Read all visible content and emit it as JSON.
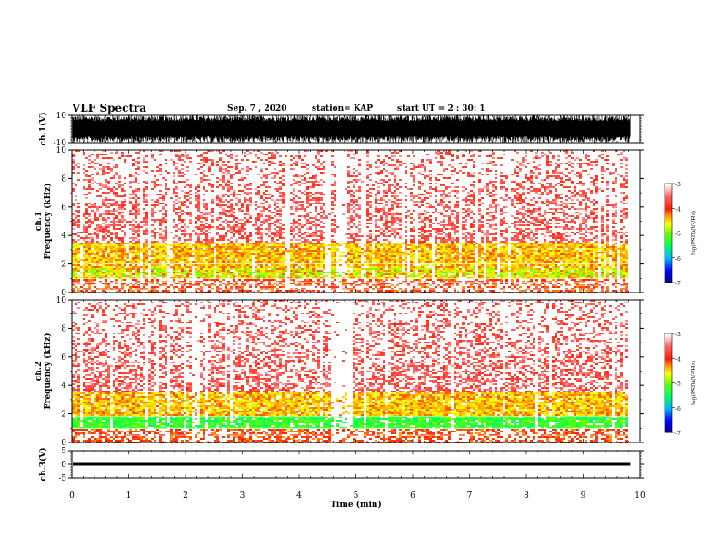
{
  "header": {
    "title": "VLF Spectra",
    "date": "Sep. 7 , 2020",
    "station": "station= KAP",
    "start_ut": "start  UT =   2 : 30: 1"
  },
  "chart_data": [
    {
      "type": "line",
      "name": "ch1-waveform",
      "ylabel": "ch.1(V)",
      "ylim": [
        -10,
        10
      ],
      "yticks": [
        "10",
        "-10"
      ],
      "xlim": [
        0,
        10
      ],
      "data_end": 9.83,
      "envelope_description": "dense noise, amplitude roughly +/-10 V saturating most of the record"
    },
    {
      "type": "heatmap",
      "name": "ch1-spectrogram",
      "ylabel": "ch.1\nFrequency (kHz)",
      "ylim": [
        0,
        10
      ],
      "yticks": [
        "0",
        "2",
        "4",
        "6",
        "8",
        "10"
      ],
      "xlim": [
        0,
        10
      ],
      "colorbar": {
        "label": "log(PSD)(V²/Hz)",
        "range": [
          -7,
          -3
        ],
        "ticks": [
          "-3",
          "-4",
          "-5",
          "-6",
          "-7"
        ],
        "colors": [
          "#000080",
          "#0000ff",
          "#00b4ff",
          "#00ff60",
          "#60ff00",
          "#ffff00",
          "#ffa000",
          "#ff2000",
          "#ff6060",
          "#ffffff"
        ]
      },
      "features": {
        "strong_band_kHz": [
          1,
          3.5
        ],
        "weak_activity_up_to_kHz": 10,
        "lines_kHz": [
          0.25,
          0.5,
          0.75,
          1.0,
          2.0
        ]
      }
    },
    {
      "type": "heatmap",
      "name": "ch2-spectrogram",
      "ylabel": "ch.2\nFrequency (kHz)",
      "ylim": [
        0,
        10
      ],
      "yticks": [
        "0",
        "2",
        "4",
        "6",
        "8",
        "10"
      ],
      "xlim": [
        0,
        10
      ],
      "colorbar": {
        "label": "log(PSD)(V²/Hz)",
        "range": [
          -7,
          -3
        ],
        "ticks": [
          "-3",
          "-4",
          "-5",
          "-6",
          "-7"
        ]
      },
      "features": {
        "strong_band_kHz": [
          0.9,
          3.5
        ],
        "green_band_kHz": [
          1.0,
          1.8
        ],
        "lines_kHz": [
          0.5,
          0.75,
          1.0,
          1.8
        ]
      }
    },
    {
      "type": "line",
      "name": "ch3-waveform",
      "ylabel": "ch.3(V)",
      "ylim": [
        -5,
        5
      ],
      "yticks": [
        "5",
        "0",
        "-5"
      ],
      "xlim": [
        0,
        10
      ],
      "data_end": 9.83,
      "level_V": 0,
      "envelope_description": "thin band near 0 V"
    }
  ],
  "xaxis": {
    "label": "Time  (min)",
    "ticks": [
      "0",
      "1",
      "2",
      "3",
      "4",
      "5",
      "6",
      "7",
      "8",
      "9",
      "10"
    ]
  }
}
